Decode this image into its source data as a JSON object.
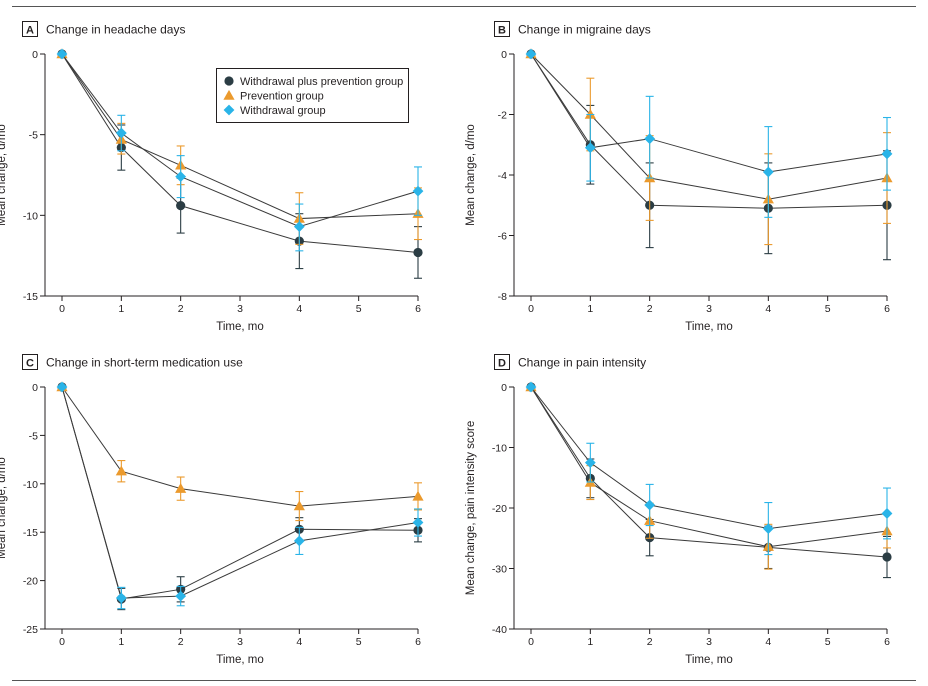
{
  "legend": [
    {
      "key": "withdrawal_plus_prevention",
      "label": "Withdrawal plus prevention group",
      "color": "#2b3d44",
      "marker": "circle"
    },
    {
      "key": "prevention",
      "label": "Prevention group",
      "color": "#eb9a2d",
      "marker": "triangle"
    },
    {
      "key": "withdrawal",
      "label": "Withdrawal group",
      "color": "#2ab4e8",
      "marker": "diamond"
    }
  ],
  "chart_data": [
    {
      "type": "line",
      "panel_letter": "A",
      "title": "Change in headache days",
      "xlabel": "Time, mo",
      "ylabel": "Mean change, d/mo",
      "x": [
        0,
        1,
        2,
        4,
        6
      ],
      "xticks": [
        0,
        1,
        2,
        3,
        4,
        5,
        6
      ],
      "ylim": [
        -15,
        0
      ],
      "yticks": [
        0,
        -5,
        -10,
        -15
      ],
      "legend_position": "top-right",
      "series": [
        {
          "name": "Withdrawal plus prevention group",
          "values": [
            0,
            -5.8,
            -9.4,
            -11.6,
            -12.3
          ],
          "err_lo": [
            0,
            -7.2,
            -11.1,
            -13.3,
            -13.9
          ],
          "err_hi": [
            0,
            -4.4,
            -7.7,
            -9.9,
            -10.7
          ]
        },
        {
          "name": "Prevention group",
          "values": [
            0,
            -5.3,
            -6.9,
            -10.2,
            -9.9
          ],
          "err_lo": [
            0,
            -6.2,
            -8.1,
            -11.8,
            -11.5
          ],
          "err_hi": [
            0,
            -4.3,
            -5.7,
            -8.6,
            -8.3
          ]
        },
        {
          "name": "Withdrawal group",
          "values": [
            0,
            -4.9,
            -7.6,
            -10.7,
            -8.5
          ],
          "err_lo": [
            0,
            -6.0,
            -8.9,
            -12.2,
            -10.0
          ],
          "err_hi": [
            0,
            -3.8,
            -6.3,
            -9.3,
            -7.0
          ]
        }
      ]
    },
    {
      "type": "line",
      "panel_letter": "B",
      "title": "Change in migraine days",
      "xlabel": "Time, mo",
      "ylabel": "Mean change, d/mo",
      "x": [
        0,
        1,
        2,
        4,
        6
      ],
      "xticks": [
        0,
        1,
        2,
        3,
        4,
        5,
        6
      ],
      "ylim": [
        -8,
        0
      ],
      "yticks": [
        0,
        -2,
        -4,
        -6,
        -8
      ],
      "series": [
        {
          "name": "Withdrawal plus prevention group",
          "values": [
            0,
            -3.0,
            -5.0,
            -5.1,
            -5.0
          ],
          "err_lo": [
            0,
            -4.3,
            -6.4,
            -6.6,
            -6.8
          ],
          "err_hi": [
            0,
            -1.7,
            -3.6,
            -3.6,
            -3.2
          ]
        },
        {
          "name": "Prevention group",
          "values": [
            0,
            -2.0,
            -4.1,
            -4.8,
            -4.1
          ],
          "err_lo": [
            0,
            -3.2,
            -5.5,
            -6.3,
            -5.6
          ],
          "err_hi": [
            0,
            -0.8,
            -2.7,
            -3.3,
            -2.6
          ]
        },
        {
          "name": "Withdrawal group",
          "values": [
            0,
            -3.1,
            -2.8,
            -3.9,
            -3.3
          ],
          "err_lo": [
            0,
            -4.2,
            -4.1,
            -5.4,
            -4.5
          ],
          "err_hi": [
            0,
            -2.0,
            -1.4,
            -2.4,
            -2.1
          ]
        }
      ]
    },
    {
      "type": "line",
      "panel_letter": "C",
      "title": "Change in short-term medication use",
      "xlabel": "Time, mo",
      "ylabel": "Mean change, d/mo",
      "x": [
        0,
        1,
        2,
        4,
        6
      ],
      "xticks": [
        0,
        1,
        2,
        3,
        4,
        5,
        6
      ],
      "ylim": [
        -25,
        0
      ],
      "yticks": [
        0,
        -5,
        -10,
        -15,
        -20,
        -25
      ],
      "series": [
        {
          "name": "Withdrawal plus prevention group",
          "values": [
            0,
            -21.9,
            -20.9,
            -14.7,
            -14.8
          ],
          "err_lo": [
            0,
            -23.0,
            -22.2,
            -15.9,
            -16.0
          ],
          "err_hi": [
            0,
            -20.8,
            -19.6,
            -13.5,
            -13.6
          ]
        },
        {
          "name": "Prevention group",
          "values": [
            0,
            -8.7,
            -10.5,
            -12.3,
            -11.3
          ],
          "err_lo": [
            0,
            -9.8,
            -11.7,
            -13.8,
            -12.7
          ],
          "err_hi": [
            0,
            -7.6,
            -9.3,
            -10.8,
            -9.9
          ]
        },
        {
          "name": "Withdrawal group",
          "values": [
            0,
            -21.8,
            -21.6,
            -15.9,
            -14.0
          ],
          "err_lo": [
            0,
            -22.9,
            -22.6,
            -17.3,
            -15.4
          ],
          "err_hi": [
            0,
            -20.7,
            -20.6,
            -14.5,
            -12.6
          ]
        }
      ]
    },
    {
      "type": "line",
      "panel_letter": "D",
      "title": "Change in pain intensity",
      "xlabel": "Time, mo",
      "ylabel": "Mean change, pain intensity score",
      "x": [
        0,
        1,
        2,
        4,
        6
      ],
      "xticks": [
        0,
        1,
        2,
        3,
        4,
        5,
        6
      ],
      "ylim": [
        -40,
        0
      ],
      "yticks": [
        0,
        -10,
        -20,
        -30,
        -40
      ],
      "series": [
        {
          "name": "Withdrawal plus prevention group",
          "values": [
            0,
            -15.1,
            -24.9,
            -26.5,
            -28.1
          ],
          "err_lo": [
            0,
            -18.3,
            -27.9,
            -30.0,
            -31.5
          ],
          "err_hi": [
            0,
            -11.9,
            -21.9,
            -23.0,
            -24.7
          ]
        },
        {
          "name": "Prevention group",
          "values": [
            0,
            -15.8,
            -22.1,
            -26.4,
            -23.8
          ],
          "err_lo": [
            0,
            -18.6,
            -25.0,
            -30.1,
            -26.6
          ],
          "err_hi": [
            0,
            -13.0,
            -19.2,
            -22.7,
            -21.0
          ]
        },
        {
          "name": "Withdrawal group",
          "values": [
            0,
            -12.5,
            -19.5,
            -23.4,
            -20.9
          ],
          "err_lo": [
            0,
            -15.7,
            -22.9,
            -27.7,
            -25.1
          ],
          "err_hi": [
            0,
            -9.3,
            -16.1,
            -19.1,
            -16.7
          ]
        }
      ]
    }
  ]
}
